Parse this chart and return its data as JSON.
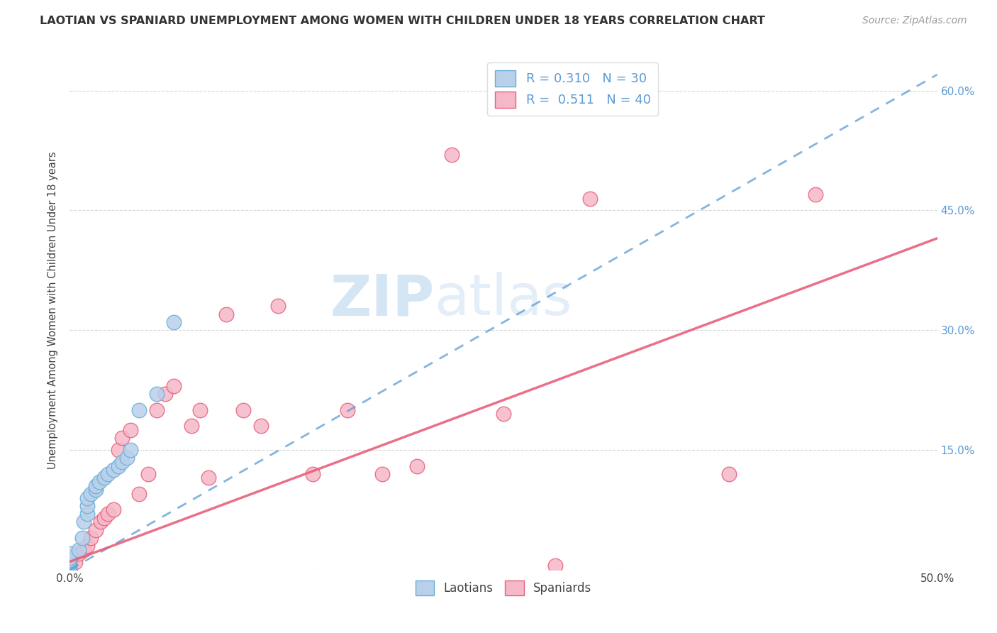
{
  "title": "LAOTIAN VS SPANIARD UNEMPLOYMENT AMONG WOMEN WITH CHILDREN UNDER 18 YEARS CORRELATION CHART",
  "source": "Source: ZipAtlas.com",
  "ylabel": "Unemployment Among Women with Children Under 18 years",
  "xlabel": "",
  "xlim": [
    0.0,
    0.5
  ],
  "ylim": [
    0.0,
    0.65
  ],
  "xtick_positions": [
    0.0,
    0.05,
    0.1,
    0.15,
    0.2,
    0.25,
    0.3,
    0.35,
    0.4,
    0.45,
    0.5
  ],
  "xtick_labels": [
    "0.0%",
    "",
    "",
    "",
    "",
    "",
    "",
    "",
    "",
    "",
    "50.0%"
  ],
  "ytick_positions": [
    0.0,
    0.15,
    0.3,
    0.45,
    0.6
  ],
  "ytick_labels_right": [
    "",
    "15.0%",
    "30.0%",
    "45.0%",
    "60.0%"
  ],
  "grid_color": "#cccccc",
  "background_color": "#ffffff",
  "laotian_fill_color": "#b8d0ea",
  "spaniard_fill_color": "#f5b8c8",
  "laotian_edge_color": "#6aaed6",
  "spaniard_edge_color": "#e8607a",
  "laotian_line_color": "#5b9bd5",
  "spaniard_line_color": "#e8607a",
  "R_laotian": 0.31,
  "N_laotian": 30,
  "R_spaniard": 0.511,
  "N_spaniard": 40,
  "legend_laotian": "Laotians",
  "legend_spaniard": "Spaniards",
  "watermark_zip": "ZIP",
  "watermark_atlas": "atlas",
  "laotian_x": [
    0.0,
    0.0,
    0.0,
    0.0,
    0.0,
    0.0,
    0.0,
    0.0,
    0.0,
    0.0,
    0.005,
    0.007,
    0.008,
    0.01,
    0.01,
    0.01,
    0.012,
    0.015,
    0.015,
    0.017,
    0.02,
    0.022,
    0.025,
    0.028,
    0.03,
    0.033,
    0.035,
    0.04,
    0.05,
    0.06
  ],
  "laotian_y": [
    0.0,
    0.0,
    0.0,
    0.0,
    0.005,
    0.008,
    0.01,
    0.012,
    0.015,
    0.02,
    0.025,
    0.04,
    0.06,
    0.07,
    0.08,
    0.09,
    0.095,
    0.1,
    0.105,
    0.11,
    0.115,
    0.12,
    0.125,
    0.13,
    0.135,
    0.14,
    0.15,
    0.2,
    0.22,
    0.31
  ],
  "spaniard_x": [
    0.0,
    0.0,
    0.0,
    0.0,
    0.0,
    0.003,
    0.005,
    0.008,
    0.01,
    0.012,
    0.015,
    0.018,
    0.02,
    0.022,
    0.025,
    0.028,
    0.03,
    0.035,
    0.04,
    0.045,
    0.05,
    0.055,
    0.06,
    0.07,
    0.075,
    0.08,
    0.09,
    0.1,
    0.11,
    0.12,
    0.14,
    0.16,
    0.18,
    0.2,
    0.22,
    0.25,
    0.28,
    0.3,
    0.38,
    0.43
  ],
  "spaniard_y": [
    0.0,
    0.0,
    0.005,
    0.01,
    0.015,
    0.01,
    0.02,
    0.025,
    0.03,
    0.04,
    0.05,
    0.06,
    0.065,
    0.07,
    0.075,
    0.15,
    0.165,
    0.175,
    0.095,
    0.12,
    0.2,
    0.22,
    0.23,
    0.18,
    0.2,
    0.115,
    0.32,
    0.2,
    0.18,
    0.33,
    0.12,
    0.2,
    0.12,
    0.13,
    0.52,
    0.195,
    0.005,
    0.465,
    0.12,
    0.47
  ],
  "laotian_trendline_x": [
    0.0,
    0.5
  ],
  "laotian_trendline_y": [
    0.0,
    0.62
  ],
  "spaniard_trendline_x": [
    0.0,
    0.5
  ],
  "spaniard_trendline_y": [
    0.01,
    0.415
  ]
}
